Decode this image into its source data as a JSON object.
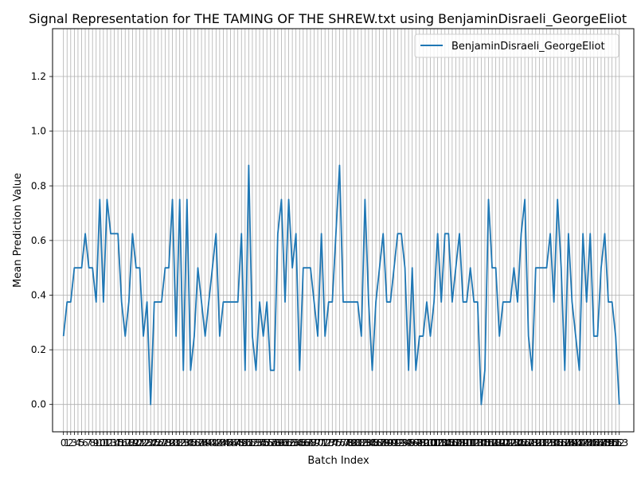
{
  "chart_data": {
    "type": "line",
    "title": "Signal Representation for THE TAMING OF THE SHREW.txt using BenjaminDisraeli_GeorgeEliot",
    "xlabel": "Batch Index",
    "ylabel": "Mean Prediction Value",
    "xlim": [
      -3,
      157
    ],
    "ylim": [
      -0.1,
      1.375
    ],
    "yticks": [
      0.0,
      0.2,
      0.4,
      0.6,
      0.8,
      1.0,
      1.2
    ],
    "ytick_labels": [
      "0.0",
      "0.2",
      "0.4",
      "0.6",
      "0.8",
      "1.0",
      "1.2"
    ],
    "x_tick_step": 1,
    "x_tick_last": 153,
    "grid": true,
    "legend_position": "top-right",
    "series": [
      {
        "name": "BenjaminDisraeli_GeorgeEliot",
        "color": "#1f77b4",
        "values": [
          0.25,
          0.375,
          0.375,
          0.5,
          0.5,
          0.5,
          0.625,
          0.5,
          0.5,
          0.375,
          0.75,
          0.375,
          0.75,
          0.625,
          0.625,
          0.625,
          0.375,
          0.25,
          0.375,
          0.625,
          0.5,
          0.5,
          0.25,
          0.375,
          0.0,
          0.375,
          0.375,
          0.375,
          0.5,
          0.5,
          0.75,
          0.25,
          0.75,
          0.125,
          0.75,
          0.125,
          0.25,
          0.5,
          0.375,
          0.25,
          0.375,
          0.5,
          0.625,
          0.25,
          0.375,
          0.375,
          0.375,
          0.375,
          0.375,
          0.625,
          0.125,
          0.875,
          0.25,
          0.125,
          0.375,
          0.25,
          0.375,
          0.125,
          0.125,
          0.625,
          0.75,
          0.375,
          0.75,
          0.5,
          0.625,
          0.125,
          0.5,
          0.5,
          0.5,
          0.375,
          0.25,
          0.625,
          0.25,
          0.375,
          0.375,
          0.625,
          0.875,
          0.375,
          0.375,
          0.375,
          0.375,
          0.375,
          0.25,
          0.75,
          0.375,
          0.125,
          0.375,
          0.5,
          0.625,
          0.375,
          0.375,
          0.5,
          0.625,
          0.625,
          0.5,
          0.125,
          0.5,
          0.125,
          0.25,
          0.25,
          0.375,
          0.25,
          0.375,
          0.625,
          0.375,
          0.625,
          0.625,
          0.375,
          0.5,
          0.625,
          0.375,
          0.375,
          0.5,
          0.375,
          0.375,
          0.0,
          0.125,
          0.75,
          0.5,
          0.5,
          0.25,
          0.375,
          0.375,
          0.375,
          0.5,
          0.375,
          0.625,
          0.75,
          0.25,
          0.125,
          0.5,
          0.5,
          0.5,
          0.5,
          0.625,
          0.375,
          0.75,
          0.5,
          0.125,
          0.625,
          0.375,
          0.25,
          0.125,
          0.625,
          0.375,
          0.625,
          0.25,
          0.25,
          0.5,
          0.625,
          0.375,
          0.375,
          0.25,
          0.0
        ]
      }
    ]
  }
}
